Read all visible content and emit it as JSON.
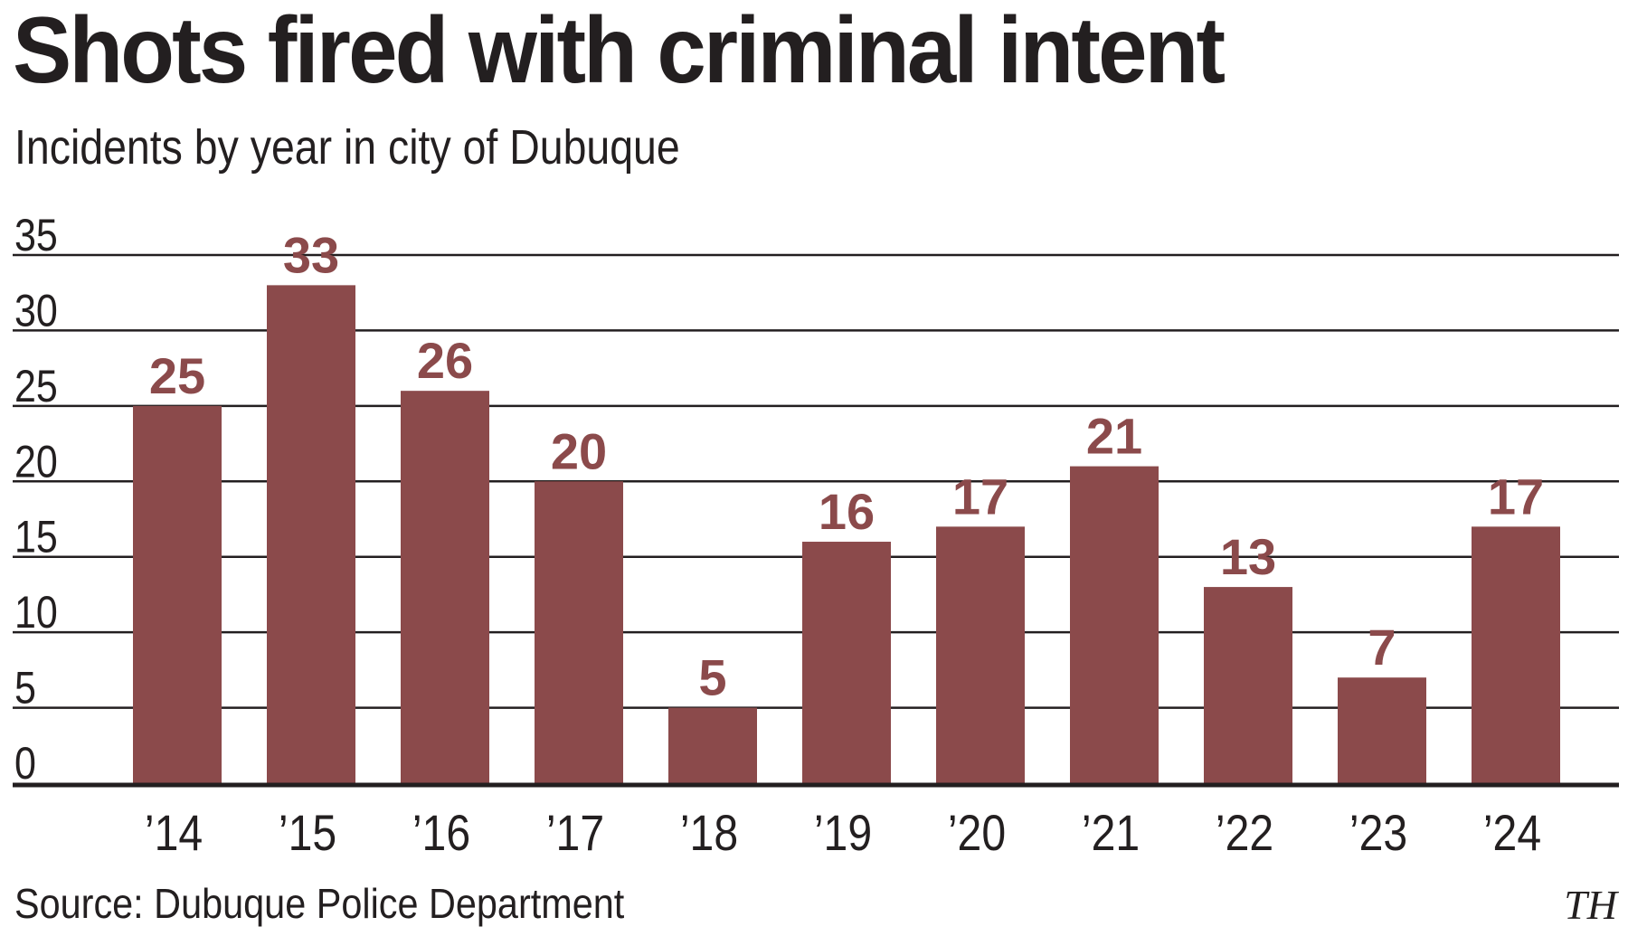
{
  "title": "Shots fired with criminal intent",
  "subtitle": "Incidents by year in city of Dubuque",
  "source": "Source: Dubuque Police Department",
  "credit": "TH",
  "colors": {
    "bar": "#8b4a4b",
    "label": "#8b4a4b",
    "grid": "#231f20",
    "text": "#231f20"
  },
  "chart_data": {
    "type": "bar",
    "title": "Shots fired with criminal intent",
    "subtitle": "Incidents by year in city of Dubuque",
    "categories": [
      "’14",
      "’15",
      "’16",
      "’17",
      "’18",
      "’19",
      "’20",
      "’21",
      "’22",
      "’23",
      "’24"
    ],
    "values": [
      25,
      33,
      26,
      20,
      5,
      16,
      17,
      21,
      13,
      7,
      17
    ],
    "yticks": [
      0,
      5,
      10,
      15,
      20,
      25,
      30,
      35
    ],
    "ylim": [
      0,
      35
    ],
    "grid": true,
    "legend": "none",
    "data_labels": true
  }
}
